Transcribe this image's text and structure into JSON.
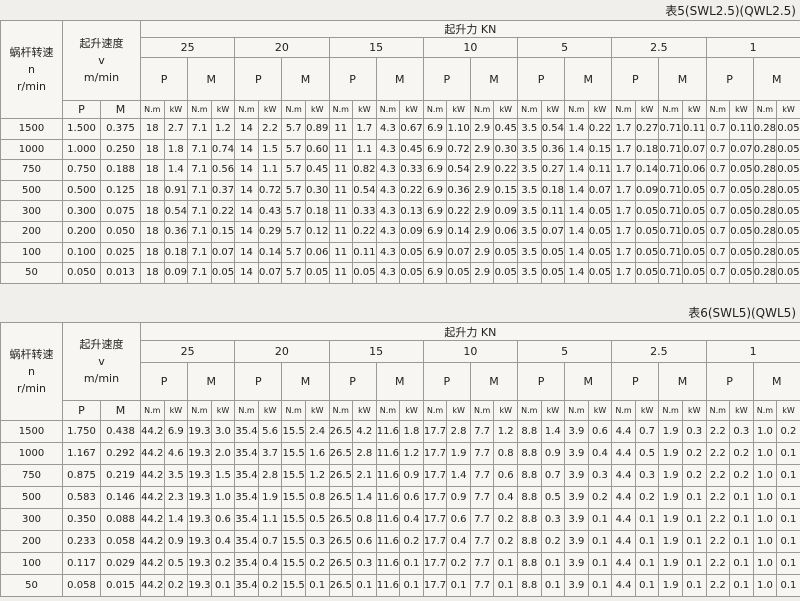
{
  "tables": [
    {
      "caption": "表5(SWL2.5)(QWL2.5)",
      "worm_speed_label": [
        "蜗杆转速",
        "n",
        "r/min"
      ],
      "lift_speed_label": [
        "起升速度",
        "v",
        "m/min"
      ],
      "lift_force_label": "起升力 KN",
      "loads": [
        "25",
        "20",
        "15",
        "10",
        "5",
        "2.5",
        "1"
      ],
      "power_label": "P",
      "torque_label": "M",
      "unit_torque": "N.m",
      "unit_power": "kW",
      "rows": [
        {
          "rpm": "1500",
          "v": [
            "1.500",
            "0.375"
          ],
          "cells": [
            "18",
            "2.7",
            "7.1",
            "1.2",
            "14",
            "2.2",
            "5.7",
            "0.89",
            "11",
            "1.7",
            "4.3",
            "0.67",
            "6.9",
            "1.10",
            "2.9",
            "0.45",
            "3.5",
            "0.54",
            "1.4",
            "0.22",
            "1.7",
            "0.27",
            "0.71",
            "0.11",
            "0.7",
            "0.11",
            "0.28",
            "0.05"
          ]
        },
        {
          "rpm": "1000",
          "v": [
            "1.000",
            "0.250"
          ],
          "cells": [
            "18",
            "1.8",
            "7.1",
            "0.74",
            "14",
            "1.5",
            "5.7",
            "0.60",
            "11",
            "1.1",
            "4.3",
            "0.45",
            "6.9",
            "0.72",
            "2.9",
            "0.30",
            "3.5",
            "0.36",
            "1.4",
            "0.15",
            "1.7",
            "0.18",
            "0.71",
            "0.07",
            "0.7",
            "0.07",
            "0.28",
            "0.05"
          ]
        },
        {
          "rpm": "750",
          "v": [
            "0.750",
            "0.188"
          ],
          "cells": [
            "18",
            "1.4",
            "7.1",
            "0.56",
            "14",
            "1.1",
            "5.7",
            "0.45",
            "11",
            "0.82",
            "4.3",
            "0.33",
            "6.9",
            "0.54",
            "2.9",
            "0.22",
            "3.5",
            "0.27",
            "1.4",
            "0.11",
            "1.7",
            "0.14",
            "0.71",
            "0.06",
            "0.7",
            "0.05",
            "0.28",
            "0.05"
          ]
        },
        {
          "rpm": "500",
          "v": [
            "0.500",
            "0.125"
          ],
          "cells": [
            "18",
            "0.91",
            "7.1",
            "0.37",
            "14",
            "0.72",
            "5.7",
            "0.30",
            "11",
            "0.54",
            "4.3",
            "0.22",
            "6.9",
            "0.36",
            "2.9",
            "0.15",
            "3.5",
            "0.18",
            "1.4",
            "0.07",
            "1.7",
            "0.09",
            "0.71",
            "0.05",
            "0.7",
            "0.05",
            "0.28",
            "0.05"
          ]
        },
        {
          "rpm": "300",
          "v": [
            "0.300",
            "0.075"
          ],
          "cells": [
            "18",
            "0.54",
            "7.1",
            "0.22",
            "14",
            "0.43",
            "5.7",
            "0.18",
            "11",
            "0.33",
            "4.3",
            "0.13",
            "6.9",
            "0.22",
            "2.9",
            "0.09",
            "3.5",
            "0.11",
            "1.4",
            "0.05",
            "1.7",
            "0.05",
            "0.71",
            "0.05",
            "0.7",
            "0.05",
            "0.28",
            "0.05"
          ]
        },
        {
          "rpm": "200",
          "v": [
            "0.200",
            "0.050"
          ],
          "cells": [
            "18",
            "0.36",
            "7.1",
            "0.15",
            "14",
            "0.29",
            "5.7",
            "0.12",
            "11",
            "0.22",
            "4.3",
            "0.09",
            "6.9",
            "0.14",
            "2.9",
            "0.06",
            "3.5",
            "0.07",
            "1.4",
            "0.05",
            "1.7",
            "0.05",
            "0.71",
            "0.05",
            "0.7",
            "0.05",
            "0.28",
            "0.05"
          ]
        },
        {
          "rpm": "100",
          "v": [
            "0.100",
            "0.025"
          ],
          "cells": [
            "18",
            "0.18",
            "7.1",
            "0.07",
            "14",
            "0.14",
            "5.7",
            "0.06",
            "11",
            "0.11",
            "4.3",
            "0.05",
            "6.9",
            "0.07",
            "2.9",
            "0.05",
            "3.5",
            "0.05",
            "1.4",
            "0.05",
            "1.7",
            "0.05",
            "0.71",
            "0.05",
            "0.7",
            "0.05",
            "0.28",
            "0.05"
          ]
        },
        {
          "rpm": "50",
          "v": [
            "0.050",
            "0.013"
          ],
          "cells": [
            "18",
            "0.09",
            "7.1",
            "0.05",
            "14",
            "0.07",
            "5.7",
            "0.05",
            "11",
            "0.05",
            "4.3",
            "0.05",
            "6.9",
            "0.05",
            "2.9",
            "0.05",
            "3.5",
            "0.05",
            "1.4",
            "0.05",
            "1.7",
            "0.05",
            "0.71",
            "0.05",
            "0.7",
            "0.05",
            "0.28",
            "0.05"
          ]
        }
      ]
    },
    {
      "caption": "表6(SWL5)(QWL5)",
      "worm_speed_label": [
        "蜗杆转速",
        "n",
        "r/min"
      ],
      "lift_speed_label": [
        "起升速度",
        "v",
        "m/min"
      ],
      "lift_force_label": "起升力 KN",
      "loads": [
        "25",
        "20",
        "15",
        "10",
        "5",
        "2.5",
        "1"
      ],
      "power_label": "P",
      "torque_label": "M",
      "unit_torque": "N.m",
      "unit_power": "kW",
      "rows": [
        {
          "rpm": "1500",
          "v": [
            "1.750",
            "0.438"
          ],
          "cells": [
            "44.2",
            "6.9",
            "19.3",
            "3.0",
            "35.4",
            "5.6",
            "15.5",
            "2.4",
            "26.5",
            "4.2",
            "11.6",
            "1.8",
            "17.7",
            "2.8",
            "7.7",
            "1.2",
            "8.8",
            "1.4",
            "3.9",
            "0.6",
            "4.4",
            "0.7",
            "1.9",
            "0.3",
            "2.2",
            "0.3",
            "1.0",
            "0.2"
          ]
        },
        {
          "rpm": "1000",
          "v": [
            "1.167",
            "0.292"
          ],
          "cells": [
            "44.2",
            "4.6",
            "19.3",
            "2.0",
            "35.4",
            "3.7",
            "15.5",
            "1.6",
            "26.5",
            "2.8",
            "11.6",
            "1.2",
            "17.7",
            "1.9",
            "7.7",
            "0.8",
            "8.8",
            "0.9",
            "3.9",
            "0.4",
            "4.4",
            "0.5",
            "1.9",
            "0.2",
            "2.2",
            "0.2",
            "1.0",
            "0.1"
          ]
        },
        {
          "rpm": "750",
          "v": [
            "0.875",
            "0.219"
          ],
          "cells": [
            "44.2",
            "3.5",
            "19.3",
            "1.5",
            "35.4",
            "2.8",
            "15.5",
            "1.2",
            "26.5",
            "2.1",
            "11.6",
            "0.9",
            "17.7",
            "1.4",
            "7.7",
            "0.6",
            "8.8",
            "0.7",
            "3.9",
            "0.3",
            "4.4",
            "0.3",
            "1.9",
            "0.2",
            "2.2",
            "0.2",
            "1.0",
            "0.1"
          ]
        },
        {
          "rpm": "500",
          "v": [
            "0.583",
            "0.146"
          ],
          "cells": [
            "44.2",
            "2.3",
            "19.3",
            "1.0",
            "35.4",
            "1.9",
            "15.5",
            "0.8",
            "26.5",
            "1.4",
            "11.6",
            "0.6",
            "17.7",
            "0.9",
            "7.7",
            "0.4",
            "8.8",
            "0.5",
            "3.9",
            "0.2",
            "4.4",
            "0.2",
            "1.9",
            "0.1",
            "2.2",
            "0.1",
            "1.0",
            "0.1"
          ]
        },
        {
          "rpm": "300",
          "v": [
            "0.350",
            "0.088"
          ],
          "cells": [
            "44.2",
            "1.4",
            "19.3",
            "0.6",
            "35.4",
            "1.1",
            "15.5",
            "0.5",
            "26.5",
            "0.8",
            "11.6",
            "0.4",
            "17.7",
            "0.6",
            "7.7",
            "0.2",
            "8.8",
            "0.3",
            "3.9",
            "0.1",
            "4.4",
            "0.1",
            "1.9",
            "0.1",
            "2.2",
            "0.1",
            "1.0",
            "0.1"
          ]
        },
        {
          "rpm": "200",
          "v": [
            "0.233",
            "0.058"
          ],
          "cells": [
            "44.2",
            "0.9",
            "19.3",
            "0.4",
            "35.4",
            "0.7",
            "15.5",
            "0.3",
            "26.5",
            "0.6",
            "11.6",
            "0.2",
            "17.7",
            "0.4",
            "7.7",
            "0.2",
            "8.8",
            "0.2",
            "3.9",
            "0.1",
            "4.4",
            "0.1",
            "1.9",
            "0.1",
            "2.2",
            "0.1",
            "1.0",
            "0.1"
          ]
        },
        {
          "rpm": "100",
          "v": [
            "0.117",
            "0.029"
          ],
          "cells": [
            "44.2",
            "0.5",
            "19.3",
            "0.2",
            "35.4",
            "0.4",
            "15.5",
            "0.2",
            "26.5",
            "0.3",
            "11.6",
            "0.1",
            "17.7",
            "0.2",
            "7.7",
            "0.1",
            "8.8",
            "0.1",
            "3.9",
            "0.1",
            "4.4",
            "0.1",
            "1.9",
            "0.1",
            "2.2",
            "0.1",
            "1.0",
            "0.1"
          ]
        },
        {
          "rpm": "50",
          "v": [
            "0.058",
            "0.015"
          ],
          "cells": [
            "44.2",
            "0.2",
            "19.3",
            "0.1",
            "35.4",
            "0.2",
            "15.5",
            "0.1",
            "26.5",
            "0.1",
            "11.6",
            "0.1",
            "17.7",
            "0.1",
            "7.7",
            "0.1",
            "8.8",
            "0.1",
            "3.9",
            "0.1",
            "4.4",
            "0.1",
            "1.9",
            "0.1",
            "2.2",
            "0.1",
            "1.0",
            "0.1"
          ]
        }
      ]
    }
  ]
}
